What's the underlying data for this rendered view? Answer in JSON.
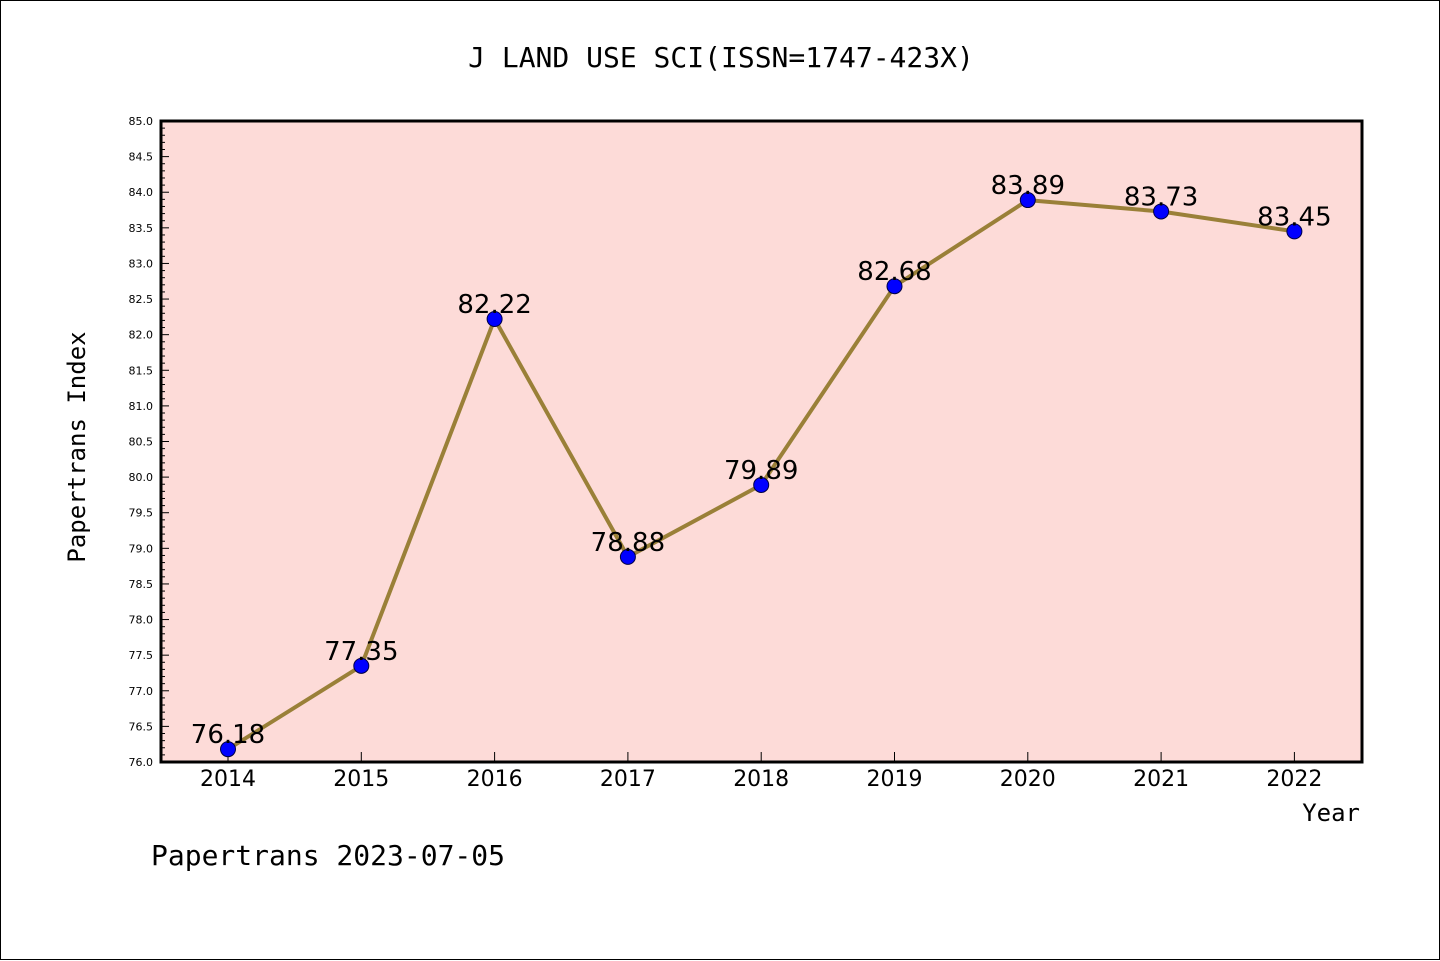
{
  "chart_data": {
    "type": "line",
    "title": "J LAND USE SCI(ISSN=1747-423X)",
    "xlabel": "Year",
    "ylabel": "Papertrans Index",
    "categories": [
      "2014",
      "2015",
      "2016",
      "2017",
      "2018",
      "2019",
      "2020",
      "2021",
      "2022"
    ],
    "series": [
      {
        "values": [
          76.18,
          77.35,
          82.22,
          78.88,
          79.89,
          82.68,
          83.89,
          83.73,
          83.45
        ],
        "data_labels": [
          "76.18",
          "77.35",
          "82.22",
          "78.88",
          "79.89",
          "82.68",
          "83.89",
          "83.73",
          "83.45"
        ]
      }
    ],
    "ylim": [
      76.0,
      85.0
    ],
    "yticks": [
      "76.0",
      "76.5",
      "77.0",
      "77.5",
      "78.0",
      "78.5",
      "79.0",
      "79.5",
      "80.0",
      "80.5",
      "81.0",
      "81.5",
      "82.0",
      "82.5",
      "83.0",
      "83.5",
      "84.0",
      "84.5",
      "85.0"
    ],
    "grid": false,
    "colors": {
      "plot_background": "#fddbd8",
      "line": "#9a8038",
      "marker": "#0000ff"
    }
  },
  "footer": "Papertrans 2023-07-05"
}
